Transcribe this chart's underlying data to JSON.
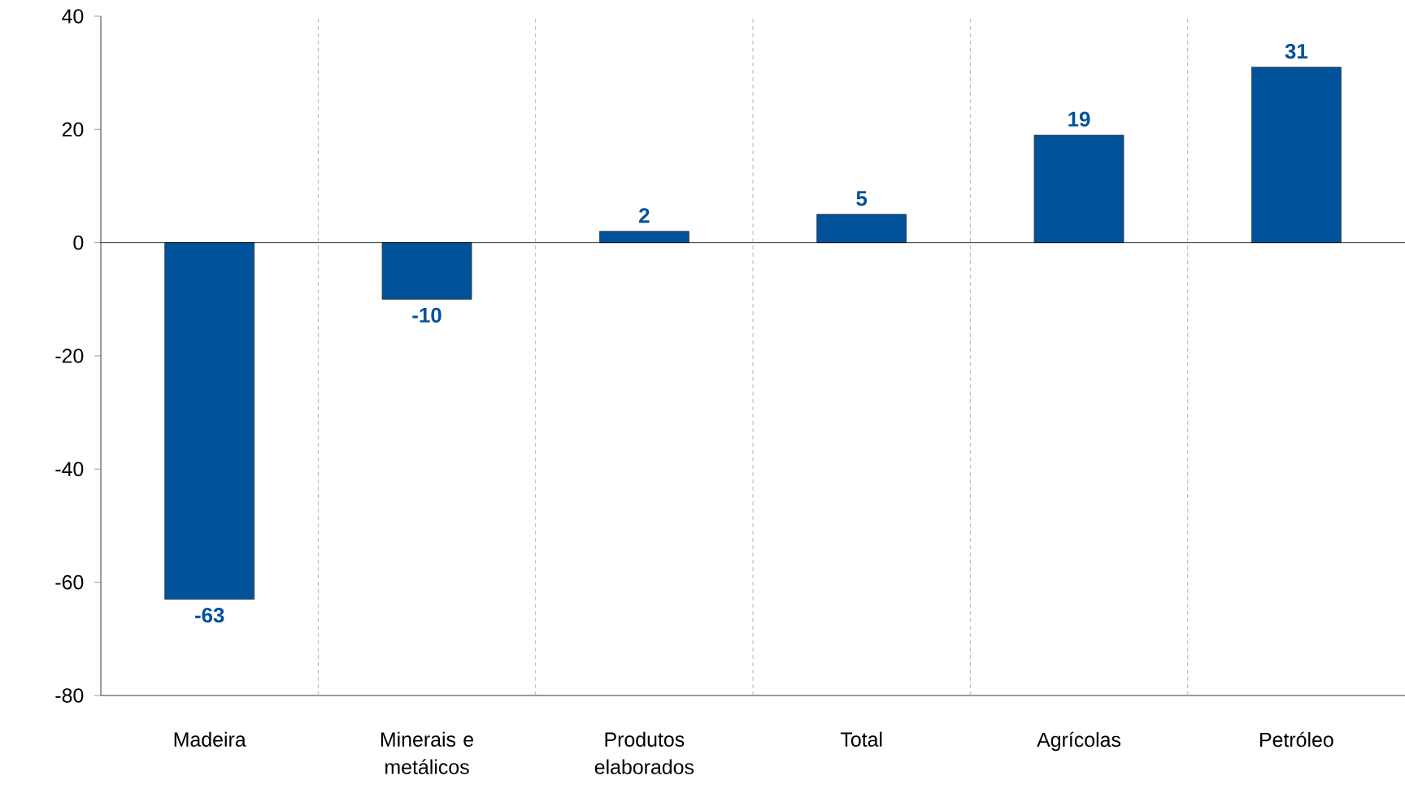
{
  "chart_data": {
    "type": "bar",
    "categories": [
      "Madeira",
      "Minerais e metálicos",
      "Produtos elaborados",
      "Total",
      "Agrícolas",
      "Petróleo"
    ],
    "values": [
      -63,
      -10,
      2,
      5,
      19,
      31
    ],
    "color": "#00529b",
    "ylim": [
      -80,
      40
    ],
    "yticks": [
      -80,
      -60,
      -40,
      -20,
      0,
      20,
      40
    ],
    "grid": "x",
    "data_labels": true
  }
}
